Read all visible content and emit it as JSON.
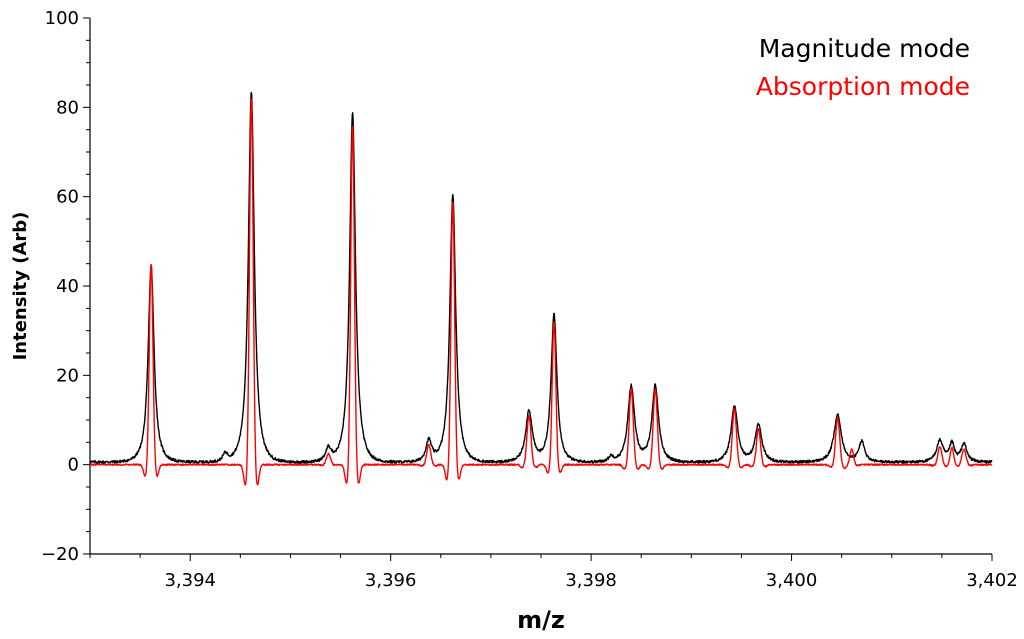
{
  "chart_data": {
    "type": "line",
    "title": "",
    "xlabel": "m/z",
    "ylabel": "Intensity (Arb)",
    "xlim": [
      3393.0,
      3402.0
    ],
    "ylim": [
      -20,
      100
    ],
    "x_ticks": [
      3394,
      3396,
      3398,
      3400,
      3402
    ],
    "x_tick_labels": [
      "3,394",
      "3,396",
      "3,398",
      "3,400",
      "3,402"
    ],
    "x_minor_step": 0.5,
    "y_ticks": [
      -20,
      0,
      20,
      40,
      60,
      80,
      100
    ],
    "y_tick_labels": [
      "−20",
      "0",
      "20",
      "40",
      "60",
      "80",
      "100"
    ],
    "y_minor_step": 5,
    "grid": false,
    "legend_position": "top-right",
    "series": [
      {
        "name": "Magnitude mode",
        "color": "#000000",
        "mode": "magnitude",
        "baseline": 0.6,
        "peaks": [
          {
            "mz": 3393.61,
            "height": 44,
            "width": 0.035
          },
          {
            "mz": 3394.35,
            "height": 1.8,
            "width": 0.03
          },
          {
            "mz": 3394.61,
            "height": 83,
            "width": 0.035
          },
          {
            "mz": 3395.38,
            "height": 3.0,
            "width": 0.035
          },
          {
            "mz": 3395.62,
            "height": 78,
            "width": 0.035
          },
          {
            "mz": 3396.38,
            "height": 4.8,
            "width": 0.035
          },
          {
            "mz": 3396.62,
            "height": 60,
            "width": 0.035
          },
          {
            "mz": 3397.38,
            "height": 11.5,
            "width": 0.04
          },
          {
            "mz": 3397.63,
            "height": 33,
            "width": 0.035
          },
          {
            "mz": 3398.2,
            "height": 1.2,
            "width": 0.03
          },
          {
            "mz": 3398.4,
            "height": 17,
            "width": 0.04
          },
          {
            "mz": 3398.64,
            "height": 17,
            "width": 0.04
          },
          {
            "mz": 3399.43,
            "height": 12.5,
            "width": 0.04
          },
          {
            "mz": 3399.67,
            "height": 8.5,
            "width": 0.04
          },
          {
            "mz": 3400.46,
            "height": 10.5,
            "width": 0.045
          },
          {
            "mz": 3400.7,
            "height": 4.6,
            "width": 0.035
          },
          {
            "mz": 3401.48,
            "height": 4.8,
            "width": 0.04
          },
          {
            "mz": 3401.6,
            "height": 4.0,
            "width": 0.03
          },
          {
            "mz": 3401.72,
            "height": 4.0,
            "width": 0.035
          }
        ]
      },
      {
        "name": "Absorption mode",
        "color": "#ff0000",
        "mode": "absorption",
        "baseline": 0.0,
        "peaks": [
          {
            "mz": 3393.61,
            "height": 45,
            "width": 0.018
          },
          {
            "mz": 3394.61,
            "height": 82,
            "width": 0.018
          },
          {
            "mz": 3395.38,
            "height": 2.5,
            "width": 0.02
          },
          {
            "mz": 3395.62,
            "height": 76,
            "width": 0.018
          },
          {
            "mz": 3396.38,
            "height": 4.5,
            "width": 0.02
          },
          {
            "mz": 3396.62,
            "height": 59,
            "width": 0.018
          },
          {
            "mz": 3397.38,
            "height": 11,
            "width": 0.02
          },
          {
            "mz": 3397.63,
            "height": 32,
            "width": 0.018
          },
          {
            "mz": 3398.4,
            "height": 17,
            "width": 0.02
          },
          {
            "mz": 3398.64,
            "height": 17,
            "width": 0.02
          },
          {
            "mz": 3399.43,
            "height": 12.5,
            "width": 0.02
          },
          {
            "mz": 3399.67,
            "height": 8,
            "width": 0.02
          },
          {
            "mz": 3400.46,
            "height": 10.5,
            "width": 0.02
          },
          {
            "mz": 3400.6,
            "height": 3.5,
            "width": 0.018
          },
          {
            "mz": 3401.48,
            "height": 4.0,
            "width": 0.02
          },
          {
            "mz": 3401.6,
            "height": 3.8,
            "width": 0.018
          },
          {
            "mz": 3401.72,
            "height": 3.5,
            "width": 0.02
          }
        ]
      }
    ]
  }
}
